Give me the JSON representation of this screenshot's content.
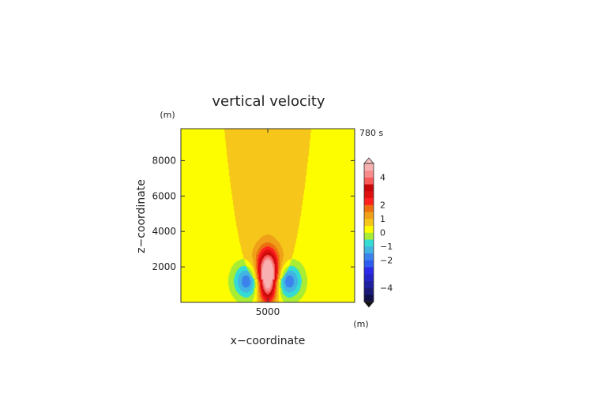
{
  "chart_data": {
    "type": "heatmap",
    "title": "vertical velocity",
    "xlabel": "x−coordinate",
    "ylabel": "z−coordinate",
    "x_unit": "(m)",
    "y_unit": "(m)",
    "time_label": "780 s",
    "xlim": [
      0,
      10000
    ],
    "ylim": [
      0,
      9800
    ],
    "x_ticks": [
      {
        "value": 5000,
        "label": "5000"
      }
    ],
    "y_ticks": [
      {
        "value": 2000,
        "label": "2000"
      },
      {
        "value": 4000,
        "label": "4000"
      },
      {
        "value": 6000,
        "label": "6000"
      },
      {
        "value": 8000,
        "label": "8000"
      }
    ],
    "colorbar": {
      "levels": [
        -5,
        -4.5,
        -4,
        -3.5,
        -3,
        -2.5,
        -2,
        -1.5,
        -1,
        -0.5,
        0,
        0.5,
        1,
        1.5,
        2,
        2.5,
        3,
        3.5,
        4,
        4.5,
        5
      ],
      "colors": [
        "#10104a",
        "#1a1a78",
        "#1f1fa0",
        "#2424c8",
        "#2a2ae8",
        "#2e5cf0",
        "#3b82ec",
        "#42b4e2",
        "#34dcd4",
        "#a8ec34",
        "#fdfd00",
        "#f6c61a",
        "#f0a018",
        "#ec7010",
        "#ff2020",
        "#e01010",
        "#c80808",
        "#f85a5a",
        "#f88c8c",
        "#f8b0b0"
      ],
      "ticks": [
        {
          "value": 4,
          "label": "4"
        },
        {
          "value": 2,
          "label": "2"
        },
        {
          "value": 1,
          "label": "1"
        },
        {
          "value": 0,
          "label": "0"
        },
        {
          "value": -1,
          "label": "−1"
        },
        {
          "value": -2,
          "label": "−2"
        },
        {
          "value": -4,
          "label": "−4"
        }
      ]
    },
    "field": {
      "background_value": 0.25,
      "plume": {
        "value": 0.75,
        "x_min": 2500,
        "x_max": 7500,
        "z_base": 1300,
        "base_half_width": 600,
        "shape_exponent": 0.45
      },
      "updraft": {
        "center_x": 5000,
        "center_z": 1350,
        "amplitude": 5.2,
        "sigma_x": 380,
        "sigma_z": 950
      },
      "updraft_wake": {
        "center_x": 5000,
        "center_z": 2200,
        "amplitude": 1.0,
        "sigma_x": 600,
        "sigma_z": 700
      },
      "downdrafts": [
        {
          "center_x": 3800,
          "center_z": 1200,
          "amplitude": -2.1,
          "sigma_x": 520,
          "sigma_z": 650
        },
        {
          "center_x": 6200,
          "center_z": 1200,
          "amplitude": -2.1,
          "sigma_x": 520,
          "sigma_z": 650
        }
      ]
    }
  }
}
